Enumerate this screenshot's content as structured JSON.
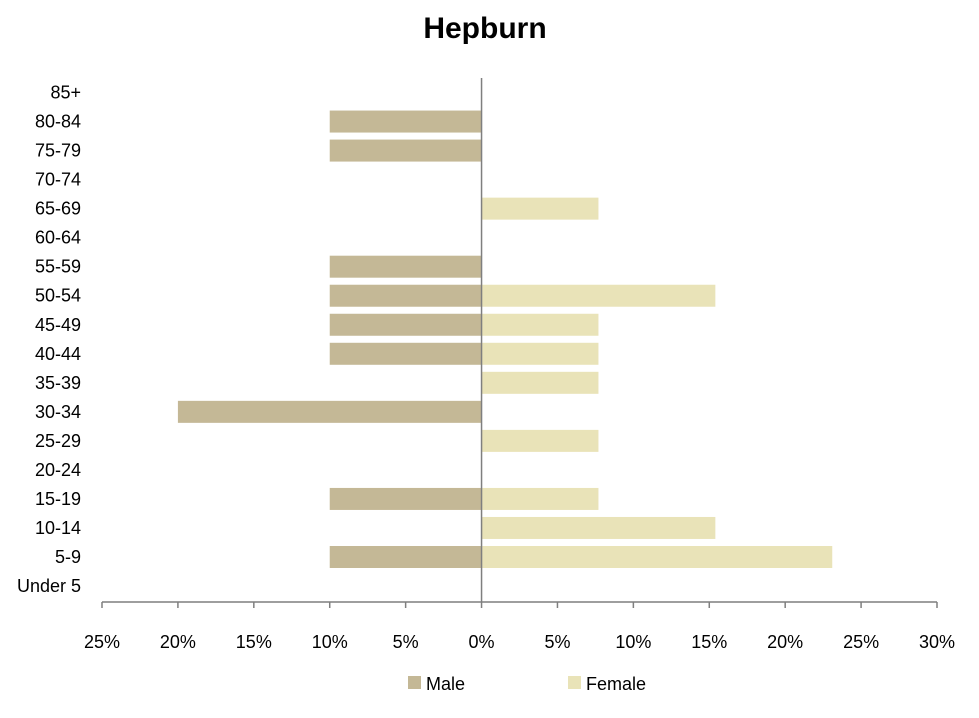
{
  "chart_data": {
    "type": "bar",
    "orientation": "horizontal",
    "title": "Hepburn",
    "xlabel": "",
    "ylabel": "",
    "categories": [
      "85+",
      "80-84",
      "75-79",
      "70-74",
      "65-69",
      "60-64",
      "55-59",
      "50-54",
      "45-49",
      "40-44",
      "35-39",
      "30-34",
      "25-29",
      "20-24",
      "15-19",
      "10-14",
      "5-9",
      "Under 5"
    ],
    "series": [
      {
        "name": "Male",
        "color": "#C4B896",
        "values": [
          0,
          10,
          10,
          0,
          0,
          0,
          10,
          10,
          10,
          10,
          0,
          20,
          0,
          0,
          10,
          0,
          10,
          0
        ]
      },
      {
        "name": "Female",
        "color": "#E9E3B8",
        "values": [
          0,
          0,
          0,
          0,
          7.7,
          0,
          0,
          15.4,
          7.7,
          7.7,
          7.7,
          0,
          7.7,
          0,
          7.7,
          15.4,
          23.1,
          0
        ]
      }
    ],
    "xlim": [
      -25,
      30
    ],
    "x_ticks": [
      -25,
      -20,
      -15,
      -10,
      -5,
      0,
      5,
      10,
      15,
      20,
      25,
      30
    ],
    "x_tick_labels": [
      "25%",
      "20%",
      "15%",
      "10%",
      "5%",
      "0%",
      "5%",
      "10%",
      "15%",
      "20%",
      "25%",
      "30%"
    ],
    "grid": false,
    "legend_position": "bottom"
  }
}
